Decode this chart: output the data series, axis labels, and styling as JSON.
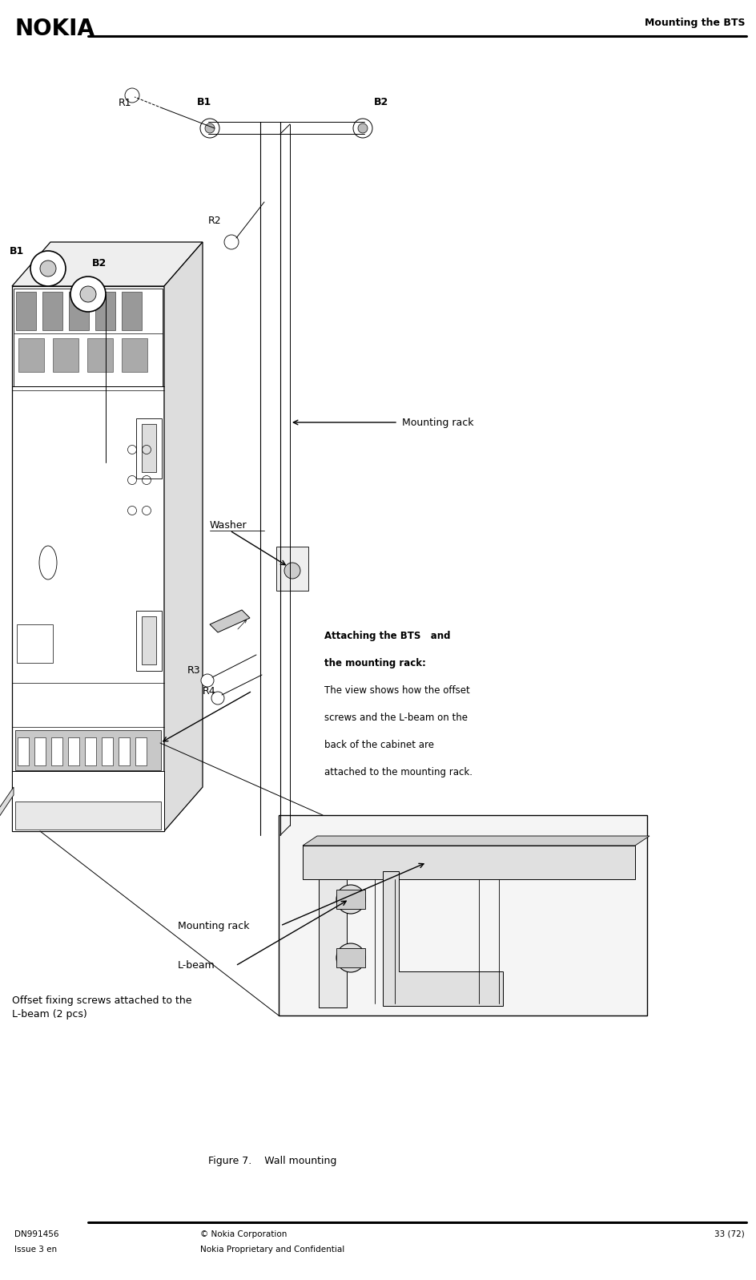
{
  "page_width": 9.44,
  "page_height": 15.97,
  "bg_color": "#ffffff",
  "header_title": "Mounting the BTS",
  "nokia_logo": "NOKIA",
  "footer_left1": "DN991456",
  "footer_left2": "Issue 3 en",
  "footer_mid1": "© Nokia Corporation",
  "footer_mid2": "Nokia Proprietary and Confidential",
  "footer_right": "33 (72)",
  "figure_caption": "Figure 7.    Wall mounting",
  "label_B1_top": "B1",
  "label_B2_top": "B2",
  "label_R1": "R1",
  "label_R2": "R2",
  "label_B1_cab": "B1",
  "label_B2_cab": "B2",
  "label_mounting_rack1": "Mounting rack",
  "label_washer": "Washer",
  "label_R3": "R3",
  "label_R4": "R4",
  "label_mounting_rack2": "Mounting rack",
  "label_l_beam": "L-beam",
  "label_offset": "Offset fixing screws attached to the\nL-beam (2 pcs)",
  "text_block_line1": "Attaching the BTS   and",
  "text_block_line2": "the mounting rack:",
  "text_block_line3": "The view shows how the offset",
  "text_block_line4": "screws and the L-beam on the",
  "text_block_line5": "back of the cabinet are",
  "text_block_line6": "attached to the mounting rack."
}
